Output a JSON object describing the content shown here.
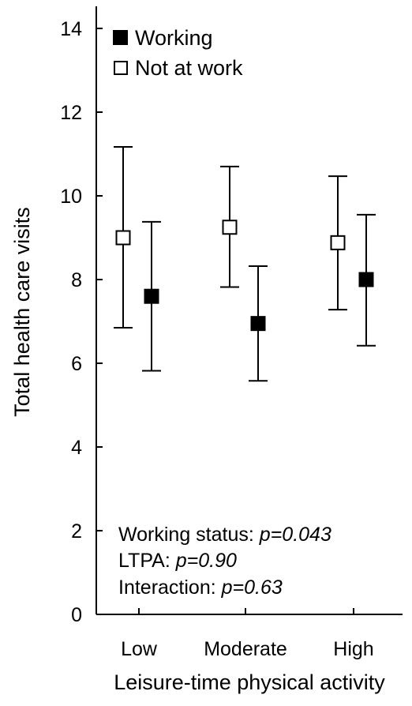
{
  "chart_data": {
    "type": "scatter",
    "categories": [
      "Low",
      "Moderate",
      "High"
    ],
    "series": [
      {
        "name": "Working",
        "marker": "filled-square",
        "color": "#000000",
        "values": [
          7.6,
          6.95,
          8.0
        ],
        "lower": [
          5.82,
          5.58,
          6.42
        ],
        "upper": [
          9.38,
          8.32,
          9.55
        ]
      },
      {
        "name": "Not at work",
        "marker": "open-square",
        "color": "#000000",
        "values": [
          9.0,
          9.25,
          8.88
        ],
        "lower": [
          6.85,
          7.82,
          7.28
        ],
        "upper": [
          11.17,
          10.7,
          10.47
        ]
      }
    ],
    "ylabel": "Total health care visits",
    "xlabel": "Leisure-time physical activity",
    "ylim": [
      0,
      14
    ],
    "yticks": [
      0,
      2,
      4,
      6,
      8,
      10,
      12,
      14
    ],
    "legend_position": "top-left",
    "grid": false
  },
  "legend": {
    "working_label": "Working",
    "not_at_work_label": "Not at work"
  },
  "annotations": {
    "line1_label": "Working status: ",
    "line1_value": "p=0.043",
    "line2_label": "LTPA: ",
    "line2_value": "p=0.90",
    "line3_label": "Interaction: ",
    "line3_value": "p=0.63"
  }
}
